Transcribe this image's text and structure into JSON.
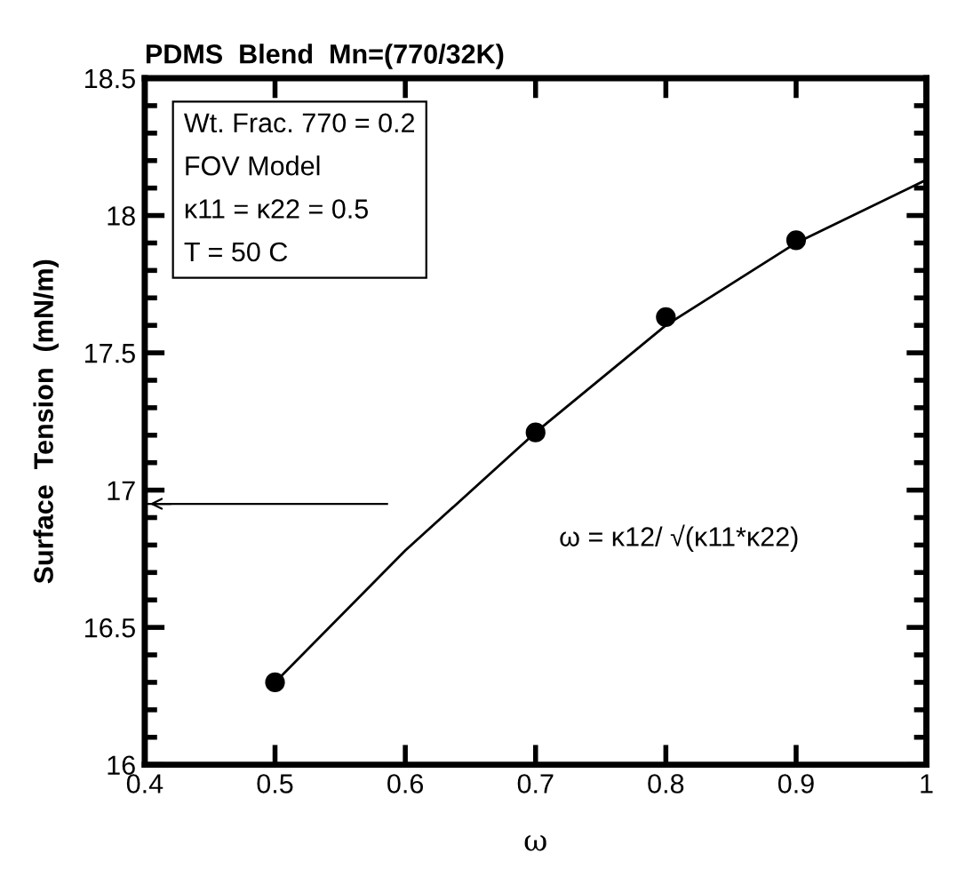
{
  "chart_data": {
    "type": "scatter",
    "title": "PDMS  Blend  Mn=(770/32K)",
    "xlabel": "ω",
    "ylabel": "Surface  Tension  (mN/m)",
    "annotations": [
      "Wt. Frac. 770 = 0.2\nFOV Model\nκ11 = κ22 = 0.5\nT = 50 C",
      "ω = κ12/ √(κ11*κ22)"
    ],
    "series": [
      {
        "color": "#000000",
        "marker": "circle",
        "x": [
          0.5,
          0.7,
          0.8,
          0.9
        ],
        "values": [
          16.3,
          17.21,
          17.63,
          17.91
        ]
      },
      {
        "type": "line",
        "marker": "none",
        "color": "#000000",
        "x": [
          0.5,
          0.6,
          0.7,
          0.8,
          0.9,
          1.0
        ],
        "values": [
          16.3,
          16.78,
          17.21,
          17.6,
          17.9,
          18.13
        ]
      }
    ],
    "ref_lines": [
      {
        "axis": "y",
        "value": 16.95
      }
    ],
    "xlim": [
      0.4,
      1.0
    ],
    "xticks": [
      0.4,
      0.5,
      0.6,
      0.7,
      0.8,
      0.9,
      1
    ],
    "ylim": [
      16,
      18.5
    ],
    "yticks": [
      16,
      16.5,
      17,
      17.5,
      18,
      18.5
    ],
    "grid": false,
    "legend": false
  }
}
